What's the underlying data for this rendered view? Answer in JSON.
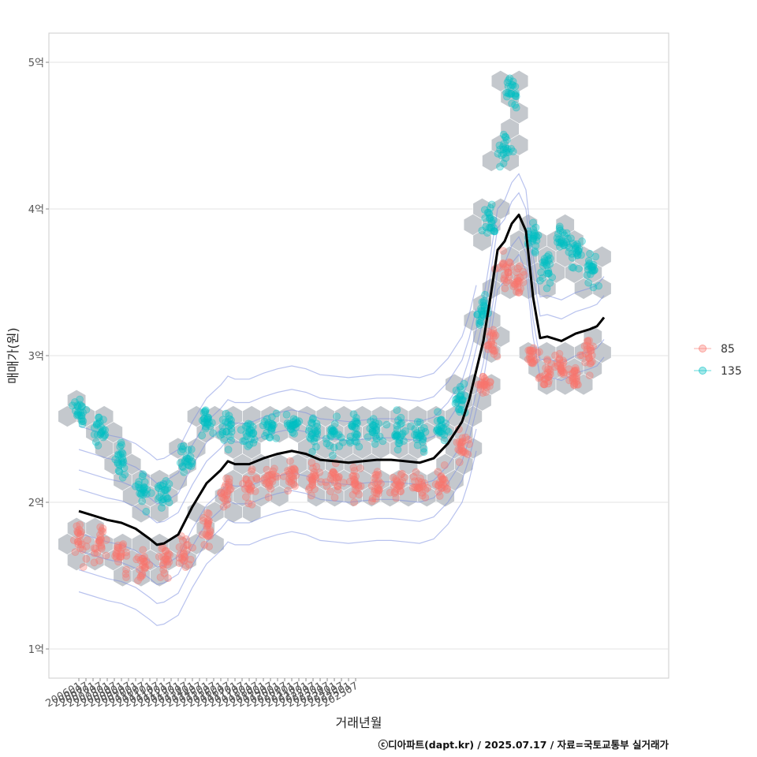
{
  "chart_data": {
    "type": "scatter",
    "xlabel": "거래년월",
    "ylabel": "매매가(원)",
    "y_unit_suffix": "억",
    "ylim": [
      0.8,
      5.2
    ],
    "yticks": [
      1,
      2,
      3,
      4,
      5
    ],
    "x_tick_labels": [
      "200601",
      "200607",
      "200701",
      "200707",
      "200801",
      "200807",
      "200901",
      "200907",
      "201001",
      "201007",
      "201101",
      "201107",
      "201201",
      "201207",
      "201301",
      "201307",
      "201401",
      "201407",
      "201501",
      "201507",
      "201601",
      "201607",
      "201701",
      "201707",
      "201801",
      "201807",
      "201901",
      "201907",
      "202001",
      "202007",
      "202101",
      "202107",
      "202201",
      "202207",
      "202301",
      "202307",
      "202401",
      "202407",
      "202501",
      "202507"
    ],
    "grid": true,
    "legend_position": "right",
    "layers": [
      "hexbin",
      "density-contour",
      "points",
      "trend-line"
    ],
    "series": [
      {
        "name": "85",
        "color": "#F8766D",
        "centers": [
          [
            0,
            1.75
          ],
          [
            3,
            1.7
          ],
          [
            6,
            1.62
          ],
          [
            9,
            1.58
          ],
          [
            12,
            1.6
          ],
          [
            15,
            1.65
          ],
          [
            18,
            1.8
          ],
          [
            21,
            2.05
          ],
          [
            24,
            2.12
          ],
          [
            27,
            2.15
          ],
          [
            30,
            2.18
          ],
          [
            33,
            2.18
          ],
          [
            36,
            2.15
          ],
          [
            39,
            2.12
          ],
          [
            42,
            2.1
          ],
          [
            45,
            2.12
          ],
          [
            48,
            2.1
          ],
          [
            51,
            2.15
          ],
          [
            54,
            2.4
          ],
          [
            57,
            2.8
          ],
          [
            58,
            3.1
          ],
          [
            60,
            3.6
          ],
          [
            62,
            3.5
          ],
          [
            64,
            3.0
          ],
          [
            66,
            2.85
          ],
          [
            68,
            2.95
          ],
          [
            70,
            2.85
          ],
          [
            72,
            3.0
          ]
        ]
      },
      {
        "name": "135",
        "color": "#00BFC4",
        "centers": [
          [
            0,
            2.6
          ],
          [
            3,
            2.5
          ],
          [
            6,
            2.3
          ],
          [
            9,
            2.1
          ],
          [
            12,
            2.05
          ],
          [
            15,
            2.3
          ],
          [
            18,
            2.55
          ],
          [
            21,
            2.5
          ],
          [
            24,
            2.45
          ],
          [
            27,
            2.5
          ],
          [
            30,
            2.55
          ],
          [
            33,
            2.5
          ],
          [
            36,
            2.45
          ],
          [
            39,
            2.5
          ],
          [
            42,
            2.5
          ],
          [
            45,
            2.48
          ],
          [
            48,
            2.45
          ],
          [
            51,
            2.5
          ],
          [
            54,
            2.7
          ],
          [
            57,
            3.3
          ],
          [
            58,
            3.9
          ],
          [
            60,
            4.4
          ],
          [
            61,
            4.8
          ],
          [
            64,
            3.8
          ],
          [
            66,
            3.6
          ],
          [
            68,
            3.8
          ],
          [
            70,
            3.7
          ],
          [
            72,
            3.6
          ]
        ]
      }
    ],
    "trend_line": [
      [
        0,
        1.94
      ],
      [
        2,
        1.91
      ],
      [
        4,
        1.88
      ],
      [
        6,
        1.86
      ],
      [
        8,
        1.82
      ],
      [
        10,
        1.75
      ],
      [
        11,
        1.71
      ],
      [
        12,
        1.72
      ],
      [
        14,
        1.78
      ],
      [
        16,
        1.97
      ],
      [
        18,
        2.13
      ],
      [
        20,
        2.22
      ],
      [
        21,
        2.28
      ],
      [
        22,
        2.26
      ],
      [
        24,
        2.26
      ],
      [
        26,
        2.3
      ],
      [
        28,
        2.33
      ],
      [
        30,
        2.35
      ],
      [
        32,
        2.33
      ],
      [
        34,
        2.29
      ],
      [
        36,
        2.28
      ],
      [
        38,
        2.27
      ],
      [
        40,
        2.28
      ],
      [
        42,
        2.29
      ],
      [
        44,
        2.29
      ],
      [
        46,
        2.28
      ],
      [
        48,
        2.27
      ],
      [
        50,
        2.3
      ],
      [
        52,
        2.4
      ],
      [
        54,
        2.55
      ],
      [
        55,
        2.7
      ],
      [
        56,
        2.9
      ],
      [
        57,
        3.1
      ],
      [
        58,
        3.4
      ],
      [
        59,
        3.72
      ],
      [
        60,
        3.78
      ],
      [
        61,
        3.9
      ],
      [
        62,
        3.96
      ],
      [
        63,
        3.85
      ],
      [
        64,
        3.4
      ],
      [
        65,
        3.12
      ],
      [
        66,
        3.13
      ],
      [
        68,
        3.1
      ],
      [
        70,
        3.15
      ],
      [
        72,
        3.18
      ],
      [
        73,
        3.2
      ],
      [
        74,
        3.26
      ]
    ]
  },
  "caption": "ⓒ디아파트(dapt.kr) / 2025.07.17 / 자료=국토교통부 실거래가",
  "legend": {
    "items": [
      {
        "label": "85"
      },
      {
        "label": "135"
      }
    ]
  }
}
